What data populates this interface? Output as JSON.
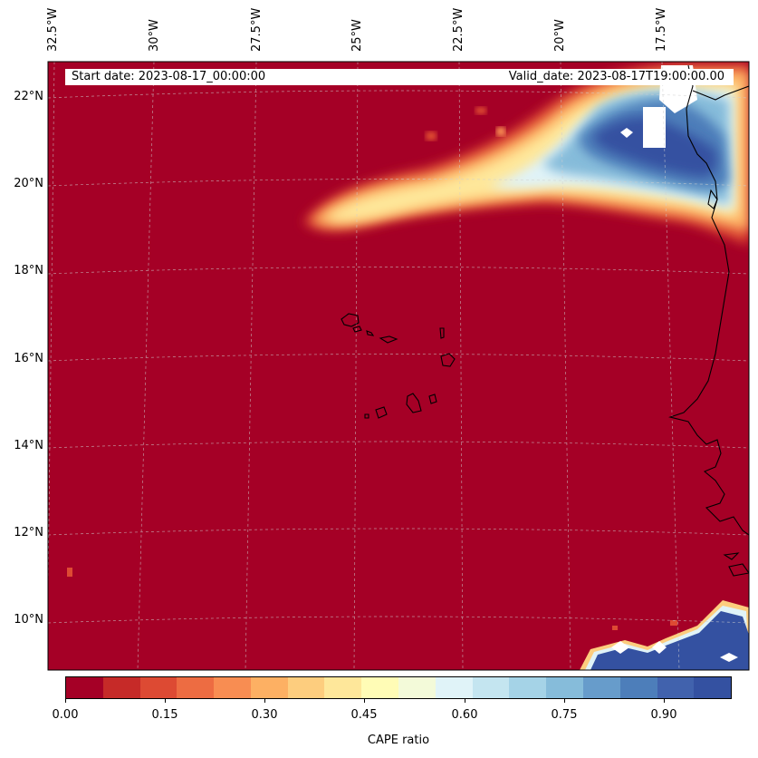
{
  "header": {
    "start_label": "Start date: 2023-08-17_00:00:00",
    "valid_label": "Valid_date: 2023-08-17T19:00:00.00"
  },
  "axes": {
    "lon_labels": [
      "32.5°W",
      "30°W",
      "27.5°W",
      "25°W",
      "22.5°W",
      "20°W",
      "17.5°W"
    ],
    "lat_labels": [
      "22°N",
      "20°N",
      "18°N",
      "16°N",
      "14°N",
      "12°N",
      "10°N"
    ]
  },
  "colorbar": {
    "label": "CAPE ratio",
    "ticks": [
      "0.00",
      "0.15",
      "0.30",
      "0.45",
      "0.60",
      "0.75",
      "0.90"
    ],
    "colors": [
      "#a50026",
      "#c62a28",
      "#dd4a33",
      "#ed6c42",
      "#f88d52",
      "#fdb063",
      "#fdcd7e",
      "#fee79a",
      "#fffcb6",
      "#f3fad9",
      "#e0f3f8",
      "#c4e5f0",
      "#a5d3e7",
      "#86bcda",
      "#679ccb",
      "#4d7eba",
      "#4162ad",
      "#3451a1"
    ]
  },
  "map": {
    "background_color": "#a50026",
    "coast_color": "#000000",
    "no_data_color": "#ffffff"
  }
}
